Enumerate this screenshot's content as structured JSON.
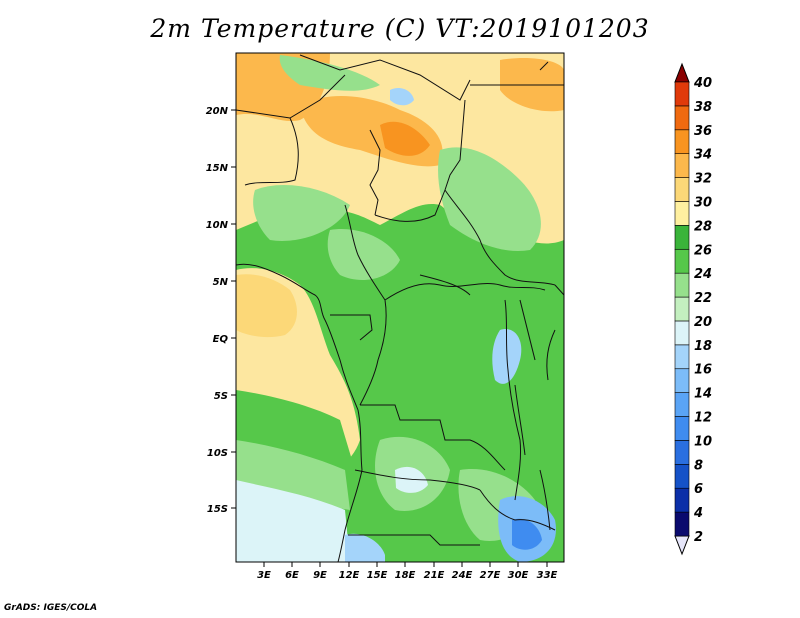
{
  "title": "2m Temperature (C) VT:2019101203",
  "credit": "GrADS: IGES/COLA",
  "map": {
    "lat_ticks": [
      "20N",
      "15N",
      "10N",
      "5N",
      "EQ",
      "5S",
      "10S",
      "15S"
    ],
    "lon_ticks": [
      "3E",
      "6E",
      "9E",
      "12E",
      "15E",
      "18E",
      "21E",
      "24E",
      "27E",
      "30E",
      "33E"
    ]
  },
  "colorbar": {
    "levels": [
      "2",
      "4",
      "6",
      "8",
      "10",
      "12",
      "14",
      "16",
      "18",
      "20",
      "22",
      "24",
      "26",
      "28",
      "30",
      "32",
      "34",
      "36",
      "38",
      "40"
    ],
    "colors": [
      "#0a0a6e",
      "#0b2fa8",
      "#1552c8",
      "#2a6fe0",
      "#3f8cf0",
      "#5aa4f5",
      "#7cbcf8",
      "#a4d4fa",
      "#dcf4f8",
      "#c4f0c0",
      "#96e08c",
      "#56c84a",
      "#3ab43a",
      "#fff0a0",
      "#fcd878",
      "#fcb84c",
      "#f89420",
      "#f06a10",
      "#e03a0a",
      "#c0100a",
      "#8a0000"
    ]
  },
  "legend_colors": {
    "ocean_warm": "#fde7a0",
    "land_green": "#56c84a",
    "sahara_orange": "#fcb84c",
    "land_light": "#96e08c",
    "south_cool": "#dcf4f8"
  }
}
